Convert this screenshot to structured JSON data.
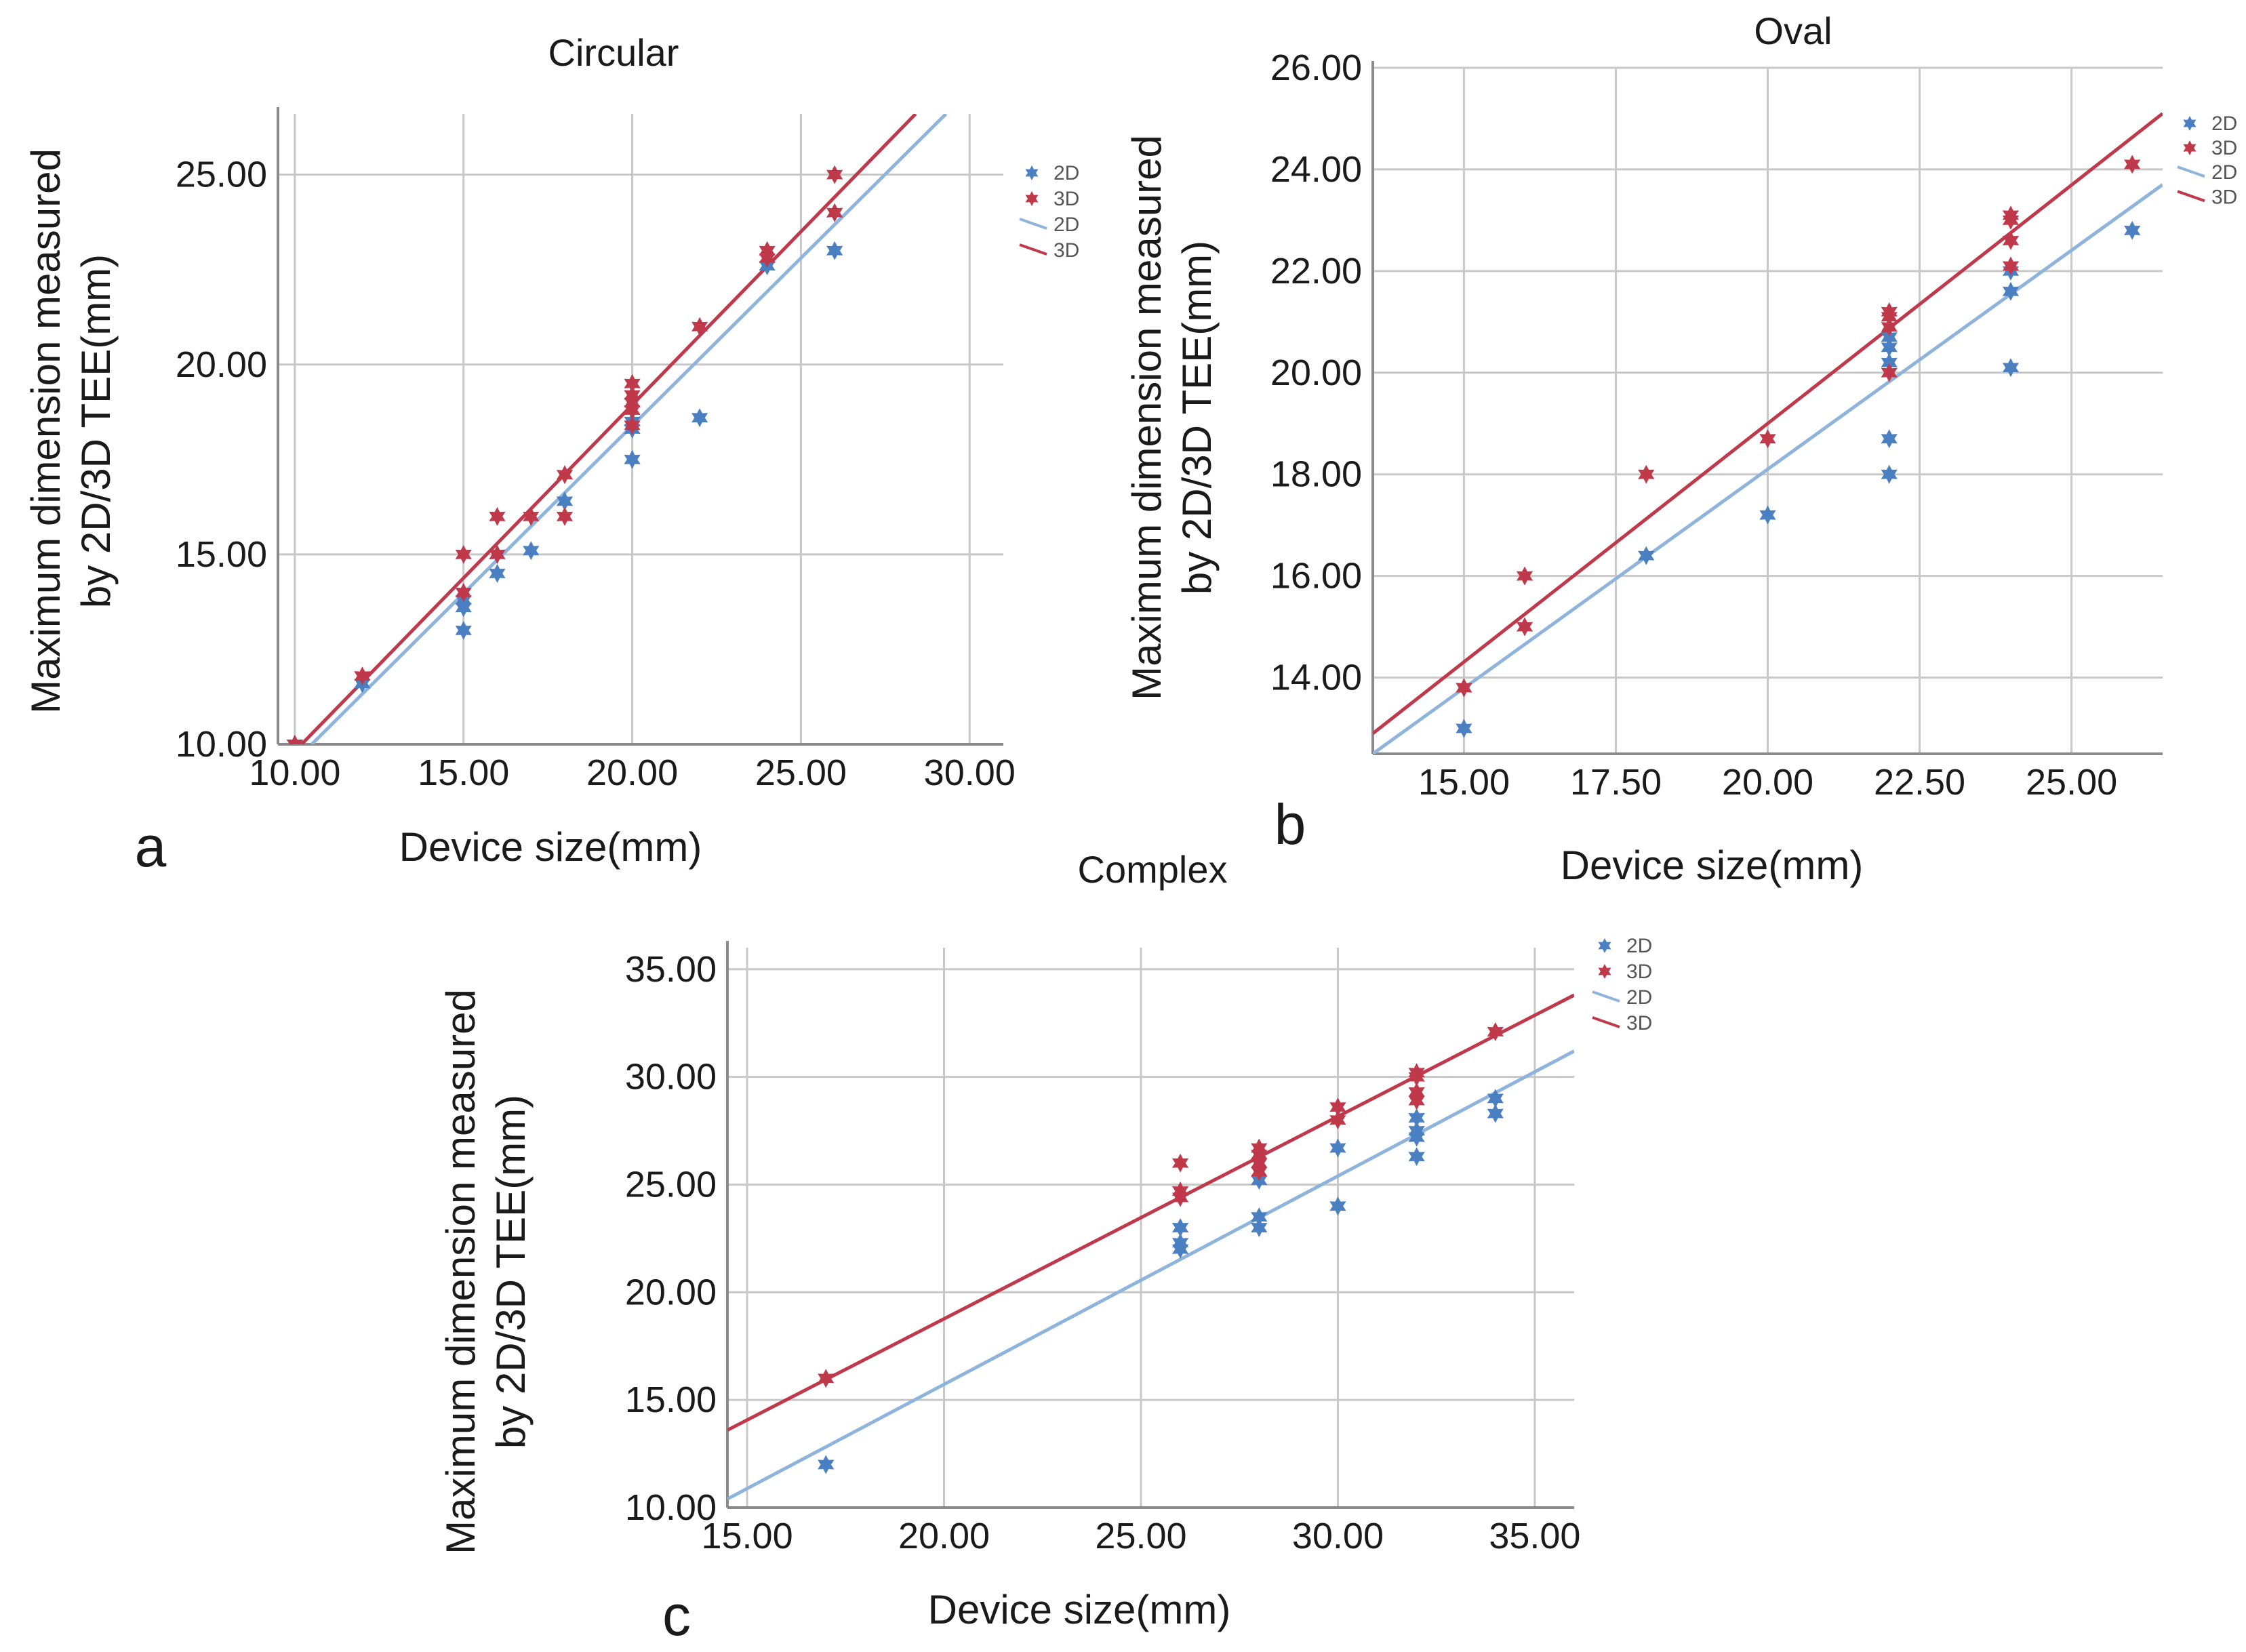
{
  "figure": {
    "panels": [
      "a",
      "b",
      "c"
    ]
  },
  "colors": {
    "2D": "#4a7fc1",
    "3D": "#c0394b",
    "2D_line": "#8fb4dc",
    "3D_line": "#c0394b"
  },
  "chart_data": [
    {
      "id": "a",
      "panel_label": "a",
      "type": "scatter",
      "title": "Circular",
      "xlabel": "Device size(mm)",
      "ylabel_line1": "Maximum dimension measured",
      "ylabel_line2": "by 2D/3D TEE(mm)",
      "xlim": [
        9.5,
        31.0
      ],
      "ylim": [
        10.0,
        26.6
      ],
      "xticks": [
        10,
        15,
        20,
        25,
        30
      ],
      "yticks": [
        10,
        15,
        20,
        25
      ],
      "x_tick_labels": [
        "10.00",
        "15.00",
        "20.00",
        "25.00",
        "30.00"
      ],
      "y_tick_labels": [
        "10.00",
        "15.00",
        "20.00",
        "25.00"
      ],
      "legend": {
        "position": "right",
        "entries": [
          {
            "label": "2D",
            "kind": "marker",
            "series": "2D"
          },
          {
            "label": "3D",
            "kind": "marker",
            "series": "3D"
          },
          {
            "label": "2D",
            "kind": "line",
            "series": "2D"
          },
          {
            "label": "3D",
            "kind": "line",
            "series": "3D"
          }
        ]
      },
      "series": [
        {
          "name": "2D",
          "points": [
            [
              10,
              10.0
            ],
            [
              12,
              11.6
            ],
            [
              15,
              13.0
            ],
            [
              15,
              13.6
            ],
            [
              15,
              13.8
            ],
            [
              16,
              14.5
            ],
            [
              16,
              15.0
            ],
            [
              17,
              15.1
            ],
            [
              18,
              16.4
            ],
            [
              20,
              17.5
            ],
            [
              20,
              18.3
            ],
            [
              20,
              18.5
            ],
            [
              22,
              18.6
            ],
            [
              24,
              22.6
            ],
            [
              26,
              23.0
            ],
            [
              26,
              24.0
            ]
          ]
        },
        {
          "name": "3D",
          "points": [
            [
              10,
              10.0
            ],
            [
              12,
              11.8
            ],
            [
              15,
              14.0
            ],
            [
              15,
              15.0
            ],
            [
              16,
              15.0
            ],
            [
              16,
              16.0
            ],
            [
              17,
              16.0
            ],
            [
              18,
              16.0
            ],
            [
              18,
              17.1
            ],
            [
              20,
              18.4
            ],
            [
              20,
              18.8
            ],
            [
              20,
              19.0
            ],
            [
              20,
              19.2
            ],
            [
              20,
              19.5
            ],
            [
              22,
              21.0
            ],
            [
              24,
              22.8
            ],
            [
              24,
              23.0
            ],
            [
              26,
              24.0
            ],
            [
              26,
              25.0
            ]
          ]
        }
      ],
      "fit_lines": [
        {
          "name": "2D",
          "x": [
            10.5,
            29.3
          ],
          "y": [
            10.0,
            26.6
          ]
        },
        {
          "name": "3D",
          "x": [
            10.2,
            28.4
          ],
          "y": [
            10.0,
            26.6
          ]
        }
      ]
    },
    {
      "id": "b",
      "panel_label": "b",
      "type": "scatter",
      "title": "Oval",
      "xlabel": "Device size(mm)",
      "ylabel_line1": "Maximum dimension measured",
      "ylabel_line2": "by 2D/3D TEE(mm)",
      "xlim": [
        13.5,
        26.5
      ],
      "ylim": [
        12.5,
        26.0
      ],
      "xticks": [
        15,
        17.5,
        20,
        22.5,
        25
      ],
      "yticks": [
        14,
        16,
        18,
        20,
        22,
        24,
        26
      ],
      "x_tick_labels": [
        "15.00",
        "17.50",
        "20.00",
        "22.50",
        "25.00"
      ],
      "y_tick_labels": [
        "14.00",
        "16.00",
        "18.00",
        "20.00",
        "22.00",
        "24.00",
        "26.00"
      ],
      "legend": {
        "position": "right",
        "entries": [
          {
            "label": "2D",
            "kind": "marker",
            "series": "2D"
          },
          {
            "label": "3D",
            "kind": "marker",
            "series": "3D"
          },
          {
            "label": "2D",
            "kind": "line",
            "series": "2D"
          },
          {
            "label": "3D",
            "kind": "line",
            "series": "3D"
          }
        ]
      },
      "series": [
        {
          "name": "2D",
          "points": [
            [
              15,
              13.0
            ],
            [
              15,
              13.8
            ],
            [
              18,
              16.4
            ],
            [
              20,
              17.2
            ],
            [
              22,
              18.0
            ],
            [
              22,
              18.7
            ],
            [
              22,
              20.2
            ],
            [
              22,
              20.5
            ],
            [
              22,
              20.7
            ],
            [
              24,
              20.1
            ],
            [
              24,
              21.6
            ],
            [
              24,
              22.0
            ],
            [
              26,
              22.8
            ]
          ]
        },
        {
          "name": "3D",
          "points": [
            [
              15,
              13.8
            ],
            [
              16,
              15.0
            ],
            [
              16,
              16.0
            ],
            [
              18,
              18.0
            ],
            [
              20,
              18.7
            ],
            [
              22,
              20.0
            ],
            [
              22,
              20.9
            ],
            [
              22,
              21.1
            ],
            [
              22,
              21.2
            ],
            [
              24,
              22.1
            ],
            [
              24,
              22.6
            ],
            [
              24,
              23.0
            ],
            [
              24,
              23.1
            ],
            [
              26,
              24.1
            ]
          ]
        }
      ],
      "fit_lines": [
        {
          "name": "2D",
          "x": [
            13.5,
            26.5
          ],
          "y": [
            12.5,
            23.7
          ]
        },
        {
          "name": "3D",
          "x": [
            13.5,
            26.5
          ],
          "y": [
            12.9,
            25.1
          ]
        }
      ]
    },
    {
      "id": "c",
      "panel_label": "c",
      "type": "scatter",
      "title": "Complex",
      "xlabel": "Device size(mm)",
      "ylabel_line1": "Maximum dimension measured",
      "ylabel_line2": "by 2D/3D TEE(mm)",
      "xlim": [
        14.5,
        36.0
      ],
      "ylim": [
        10.0,
        36.0
      ],
      "xticks": [
        15,
        20,
        25,
        30,
        35
      ],
      "yticks": [
        10,
        15,
        20,
        25,
        30,
        35
      ],
      "x_tick_labels": [
        "15.00",
        "20.00",
        "25.00",
        "30.00",
        "35.00"
      ],
      "y_tick_labels": [
        "10.00",
        "15.00",
        "20.00",
        "25.00",
        "30.00",
        "35.00"
      ],
      "legend": {
        "position": "right",
        "entries": [
          {
            "label": "2D",
            "kind": "marker",
            "series": "2D"
          },
          {
            "label": "3D",
            "kind": "marker",
            "series": "3D"
          },
          {
            "label": "2D",
            "kind": "line",
            "series": "2D"
          },
          {
            "label": "3D",
            "kind": "line",
            "series": "3D"
          }
        ]
      },
      "series": [
        {
          "name": "2D",
          "points": [
            [
              17,
              12.0
            ],
            [
              26,
              22.0
            ],
            [
              26,
              22.3
            ],
            [
              26,
              23.0
            ],
            [
              28,
              23.0
            ],
            [
              28,
              23.5
            ],
            [
              28,
              25.2
            ],
            [
              30,
              24.0
            ],
            [
              30,
              26.7
            ],
            [
              32,
              26.3
            ],
            [
              32,
              27.2
            ],
            [
              32,
              27.5
            ],
            [
              32,
              28.1
            ],
            [
              34,
              28.3
            ],
            [
              34,
              29.0
            ]
          ]
        },
        {
          "name": "3D",
          "points": [
            [
              17,
              16.0
            ],
            [
              26,
              24.4
            ],
            [
              26,
              24.7
            ],
            [
              26,
              26.0
            ],
            [
              28,
              25.6
            ],
            [
              28,
              26.0
            ],
            [
              28,
              26.4
            ],
            [
              28,
              26.7
            ],
            [
              30,
              28.0
            ],
            [
              30,
              28.6
            ],
            [
              32,
              28.9
            ],
            [
              32,
              29.3
            ],
            [
              32,
              30.0
            ],
            [
              32,
              30.2
            ],
            [
              34,
              32.1
            ]
          ]
        }
      ],
      "fit_lines": [
        {
          "name": "2D",
          "x": [
            14.5,
            36.0
          ],
          "y": [
            10.4,
            31.2
          ]
        },
        {
          "name": "3D",
          "x": [
            14.5,
            36.0
          ],
          "y": [
            13.6,
            33.8
          ]
        }
      ]
    }
  ]
}
